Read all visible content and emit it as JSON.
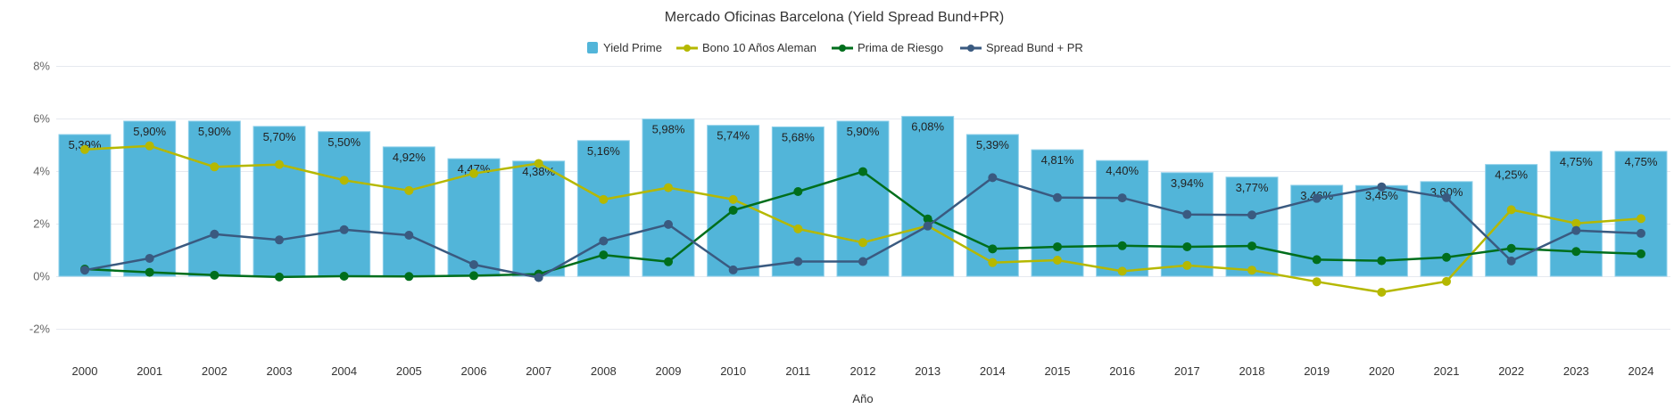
{
  "chart_data": {
    "type": "bar",
    "title": "Mercado Oficinas Barcelona (Yield Spread Bund+PR)",
    "xlabel": "Año",
    "ylabel": "",
    "ylim": [
      -2,
      8
    ],
    "yticks": [
      -2,
      0,
      2,
      4,
      6,
      8
    ],
    "ytick_labels": [
      "-2%",
      "0%",
      "2%",
      "4%",
      "6%",
      "8%"
    ],
    "grid": true,
    "legend_position": "top-center",
    "categories": [
      "2000",
      "2001",
      "2002",
      "2003",
      "2004",
      "2005",
      "2006",
      "2007",
      "2008",
      "2009",
      "2010",
      "2011",
      "2012",
      "2013",
      "2014",
      "2015",
      "2016",
      "2017",
      "2018",
      "2019",
      "2020",
      "2021",
      "2022",
      "2023",
      "2024"
    ],
    "series": [
      {
        "name": "Yield Prime",
        "type": "bar",
        "color": "#52b5d9",
        "values": [
          5.39,
          5.9,
          5.9,
          5.7,
          5.5,
          4.92,
          4.47,
          4.38,
          5.16,
          5.98,
          5.74,
          5.68,
          5.9,
          6.08,
          5.39,
          4.81,
          4.4,
          3.94,
          3.77,
          3.46,
          3.45,
          3.6,
          4.25,
          4.75,
          4.75
        ],
        "labels": [
          "5,39%",
          "5,90%",
          "5,90%",
          "5,70%",
          "5,50%",
          "4,92%",
          "4,47%",
          "4,38%",
          "5,16%",
          "5,98%",
          "5,74%",
          "5,68%",
          "5,90%",
          "6,08%",
          "5,39%",
          "4,81%",
          "4,40%",
          "3,94%",
          "3,77%",
          "3,46%",
          "3,45%",
          "3,60%",
          "4,25%",
          "4,75%",
          "4,75%"
        ]
      },
      {
        "name": "Bono 10 Años Aleman",
        "type": "line",
        "color": "#b5b800",
        "values": [
          4.82,
          4.96,
          4.16,
          4.25,
          3.65,
          3.26,
          3.91,
          4.29,
          2.92,
          3.37,
          2.92,
          1.8,
          1.28,
          1.92,
          0.52,
          0.61,
          0.19,
          0.41,
          0.23,
          -0.21,
          -0.61,
          -0.2,
          2.53,
          2.01,
          2.19
        ]
      },
      {
        "name": "Prima de Riesgo",
        "type": "line",
        "color": "#006e1c",
        "values": [
          0.27,
          0.15,
          0.04,
          -0.03,
          0.0,
          -0.01,
          0.02,
          0.08,
          0.81,
          0.55,
          2.51,
          3.22,
          3.98,
          2.18,
          1.04,
          1.12,
          1.16,
          1.12,
          1.15,
          0.63,
          0.59,
          0.72,
          1.06,
          0.94,
          0.85
        ]
      },
      {
        "name": "Spread Bund + PR",
        "type": "line",
        "color": "#3a5a80",
        "values": [
          0.23,
          0.68,
          1.6,
          1.38,
          1.77,
          1.56,
          0.44,
          -0.05,
          1.34,
          1.97,
          0.24,
          0.56,
          0.56,
          1.91,
          3.75,
          2.99,
          2.98,
          2.35,
          2.33,
          2.96,
          3.4,
          2.99,
          0.58,
          1.74,
          1.63
        ]
      }
    ]
  }
}
